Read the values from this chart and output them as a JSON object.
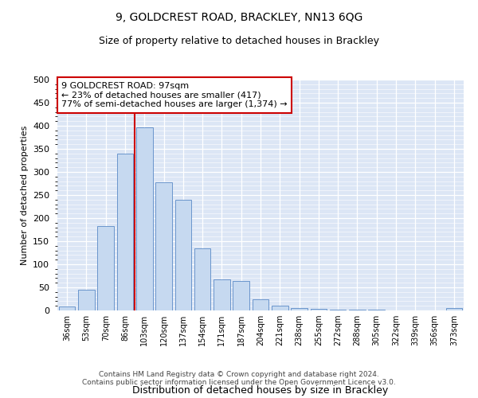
{
  "title_line1": "9, GOLDCREST ROAD, BRACKLEY, NN13 6QG",
  "title_line2": "Size of property relative to detached houses in Brackley",
  "xlabel": "Distribution of detached houses by size in Brackley",
  "ylabel": "Number of detached properties",
  "categories": [
    "36sqm",
    "53sqm",
    "70sqm",
    "86sqm",
    "103sqm",
    "120sqm",
    "137sqm",
    "154sqm",
    "171sqm",
    "187sqm",
    "204sqm",
    "221sqm",
    "238sqm",
    "255sqm",
    "272sqm",
    "288sqm",
    "305sqm",
    "322sqm",
    "339sqm",
    "356sqm",
    "373sqm"
  ],
  "values": [
    8,
    45,
    183,
    340,
    397,
    278,
    240,
    135,
    68,
    63,
    25,
    10,
    5,
    3,
    2,
    1,
    1,
    0,
    0,
    0,
    5
  ],
  "bar_color": "#c6d9f0",
  "bar_edge_color": "#5a8ac6",
  "vline_color": "#cc0000",
  "vline_xindex": 3.5,
  "annotation_box_text": "9 GOLDCREST ROAD: 97sqm\n← 23% of detached houses are smaller (417)\n77% of semi-detached houses are larger (1,374) →",
  "annotation_box_color": "#cc0000",
  "annotation_box_bg": "#ffffff",
  "ylim": [
    0,
    500
  ],
  "yticks": [
    0,
    50,
    100,
    150,
    200,
    250,
    300,
    350,
    400,
    450,
    500
  ],
  "bg_color": "#dce6f5",
  "footer_line1": "Contains HM Land Registry data © Crown copyright and database right 2024.",
  "footer_line2": "Contains public sector information licensed under the Open Government Licence v3.0."
}
